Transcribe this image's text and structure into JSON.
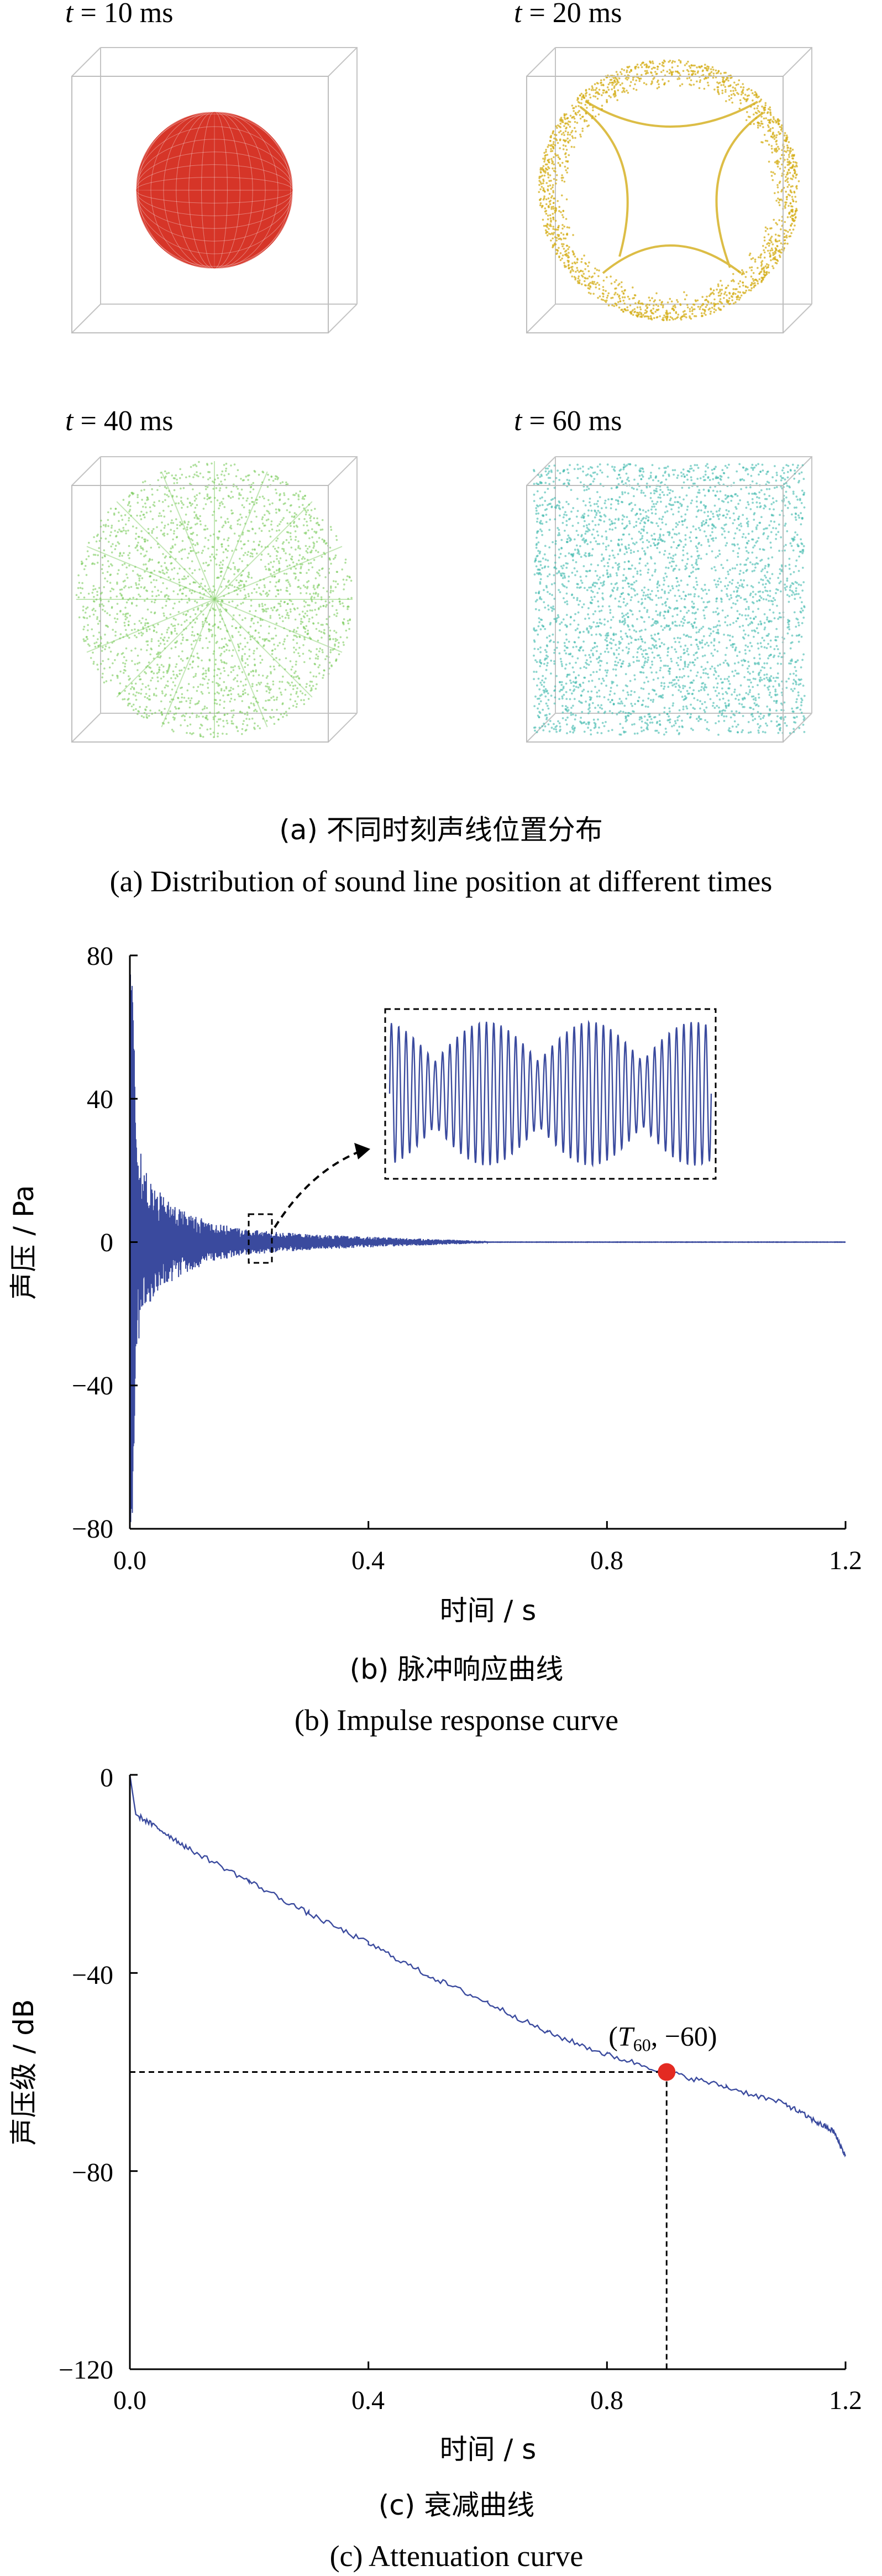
{
  "panel_a": {
    "caption_cn": "(a) 不同时刻声线位置分布",
    "caption_en": "(a) Distribution of sound line position at different times",
    "snapshots": [
      {
        "t_var": "t",
        "t_rest": " = 10 ms",
        "color": "#d42a1c",
        "pattern": "sphere"
      },
      {
        "t_var": "t",
        "t_rest": " = 20 ms",
        "color": "#d4ad18",
        "pattern": "shell"
      },
      {
        "t_var": "t",
        "t_rest": " = 40 ms",
        "color": "#7ccb5e",
        "pattern": "scatter-rays"
      },
      {
        "t_var": "t",
        "t_rest": " = 60 ms",
        "color": "#3fb9ae",
        "pattern": "diffuse"
      }
    ]
  },
  "chart_data": [
    {
      "type": "line",
      "panel": "b",
      "caption_cn": "(b) 脉冲响应曲线",
      "caption_en": "(b) Impulse response curve",
      "xlabel": "时间 / s",
      "ylabel": "声压 / Pa",
      "xlim": [
        0,
        1.2
      ],
      "ylim": [
        -80,
        80
      ],
      "xticks": [
        "0.0",
        "0.4",
        "0.8",
        "1.2"
      ],
      "yticks": [
        "80",
        "40",
        "0",
        "−40",
        "−80"
      ],
      "series_color": "#3a4a9e",
      "envelope": {
        "t": [
          0.0,
          0.005,
          0.01,
          0.03,
          0.06,
          0.1,
          0.15,
          0.2,
          0.3,
          0.4,
          0.5,
          0.6
        ],
        "amp": [
          80,
          75,
          30,
          18,
          12,
          8,
          5,
          3.5,
          2.2,
          1.5,
          0.9,
          0.3
        ]
      },
      "zoom_window": {
        "x": [
          0.22,
          0.265
        ],
        "y": [
          -6,
          6
        ]
      },
      "inset": {
        "x_range": [
          0.22,
          0.265
        ],
        "y_range": [
          -6,
          6
        ]
      }
    },
    {
      "type": "line",
      "panel": "c",
      "caption_cn": "(c) 衰减曲线",
      "caption_en": "(c) Attenuation curve",
      "xlabel": "时间 / s",
      "ylabel": "声压级 / dB",
      "xlim": [
        0,
        1.2
      ],
      "ylim": [
        -120,
        0
      ],
      "xticks": [
        "0.0",
        "0.4",
        "0.8",
        "1.2"
      ],
      "yticks": [
        "0",
        "−40",
        "−80",
        "−120"
      ],
      "series_color": "#3a4a9e",
      "x": [
        0.0,
        0.01,
        0.05,
        0.1,
        0.2,
        0.3,
        0.4,
        0.5,
        0.6,
        0.7,
        0.8,
        0.9,
        1.0,
        1.1,
        1.15,
        1.18,
        1.2
      ],
      "y": [
        0,
        -8,
        -11,
        -15,
        -21.5,
        -28,
        -34,
        -40.5,
        -46,
        -52,
        -56.5,
        -60,
        -63,
        -66.5,
        -70,
        -72,
        -77
      ],
      "marker": {
        "x": 0.9,
        "y": -60,
        "color": "#e32a22",
        "label_open": "(",
        "label_var": "T",
        "label_sub": "60",
        "label_close": ", −60)"
      }
    }
  ]
}
